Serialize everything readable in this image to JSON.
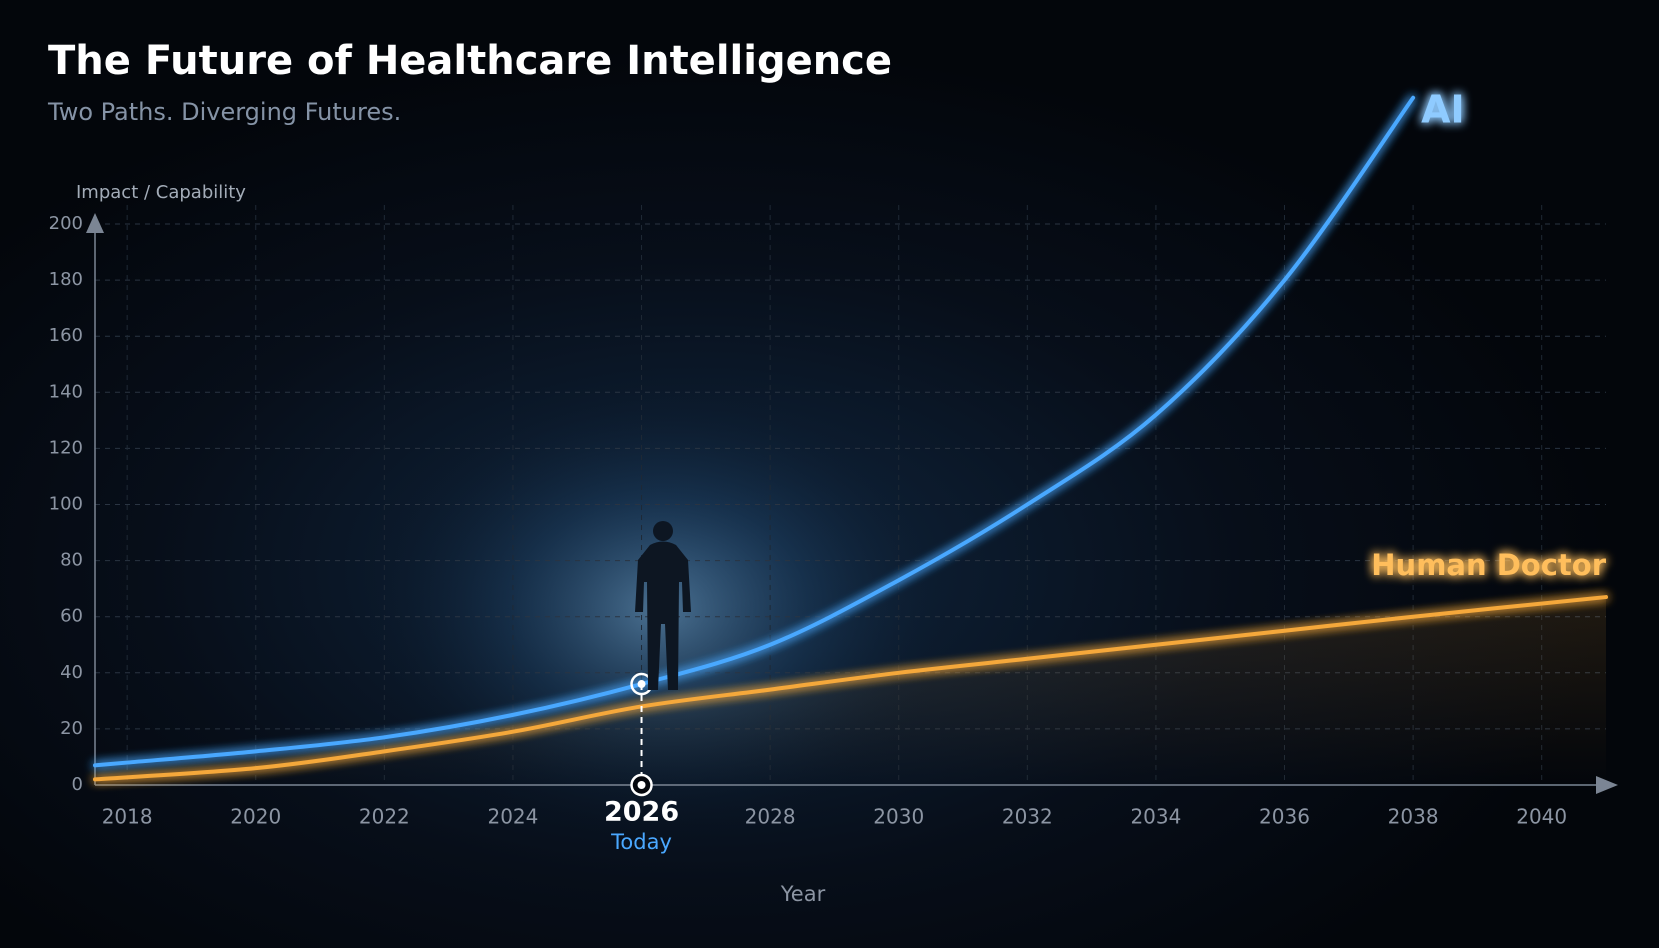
{
  "chart_data": {
    "type": "line",
    "title": "The Future of Healthcare Intelligence",
    "subtitle": "Two Paths. Diverging Futures.",
    "y_label": "Impact / Capability",
    "x_label": "Year",
    "series": [
      {
        "name": "AI",
        "color": "#4aa8ff",
        "x": [
          2017.5,
          2018,
          2020,
          2022,
          2024,
          2026,
          2028,
          2030,
          2032,
          2034,
          2036,
          2038
        ],
        "values": [
          7,
          8,
          12,
          17,
          25,
          36,
          50,
          73,
          100,
          132,
          180,
          245
        ]
      },
      {
        "name": "Human Doctor",
        "color": "#f5a83a",
        "x": [
          2017.5,
          2020,
          2022,
          2024,
          2026,
          2028,
          2030,
          2032,
          2034,
          2036,
          2038,
          2041
        ],
        "values": [
          2,
          6,
          12,
          19,
          28,
          34,
          40,
          45,
          50,
          55,
          60,
          67
        ]
      }
    ],
    "highlight": {
      "x": 2026,
      "label": "Today"
    },
    "xlim": [
      2017.5,
      2041
    ],
    "xticks": [
      2018,
      2020,
      2022,
      2024,
      2026,
      2028,
      2030,
      2032,
      2034,
      2036,
      2038,
      2040
    ],
    "ylim": [
      0,
      200
    ],
    "yticks": [
      0,
      20,
      40,
      60,
      80,
      100,
      120,
      140,
      160,
      180,
      200
    ],
    "grid": true
  }
}
